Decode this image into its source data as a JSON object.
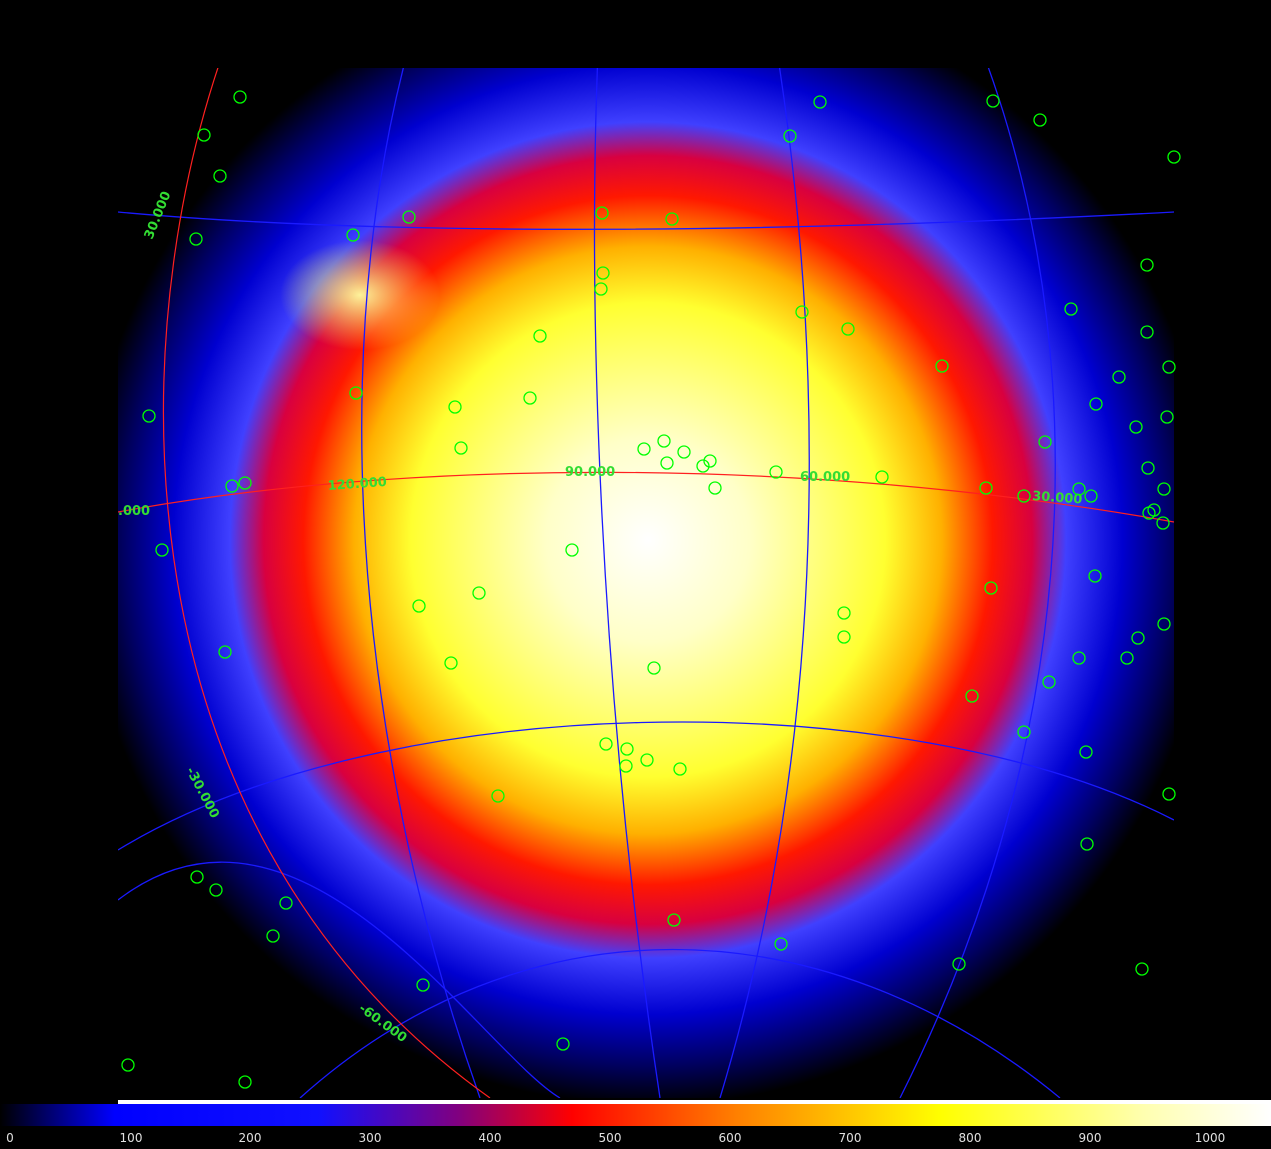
{
  "grid_labels": {
    "lon_150": ".000",
    "lon_120": "120.000",
    "lon_90": "90.000",
    "lon_60": "60.000",
    "lon_30": "30.000",
    "lat_p30": "30.000",
    "lat_m30": "-30.000",
    "lat_m60": "-60.000"
  },
  "colorbar": {
    "ticks": [
      "0",
      "100",
      "200",
      "300",
      "400",
      "500",
      "600",
      "700",
      "800",
      "900",
      "1000"
    ]
  },
  "colors": {
    "background": "#000000",
    "grid": "#1a1aff",
    "boundary": "#ff2020",
    "source_marker": "#00ff00",
    "label": "#33dd33"
  }
}
